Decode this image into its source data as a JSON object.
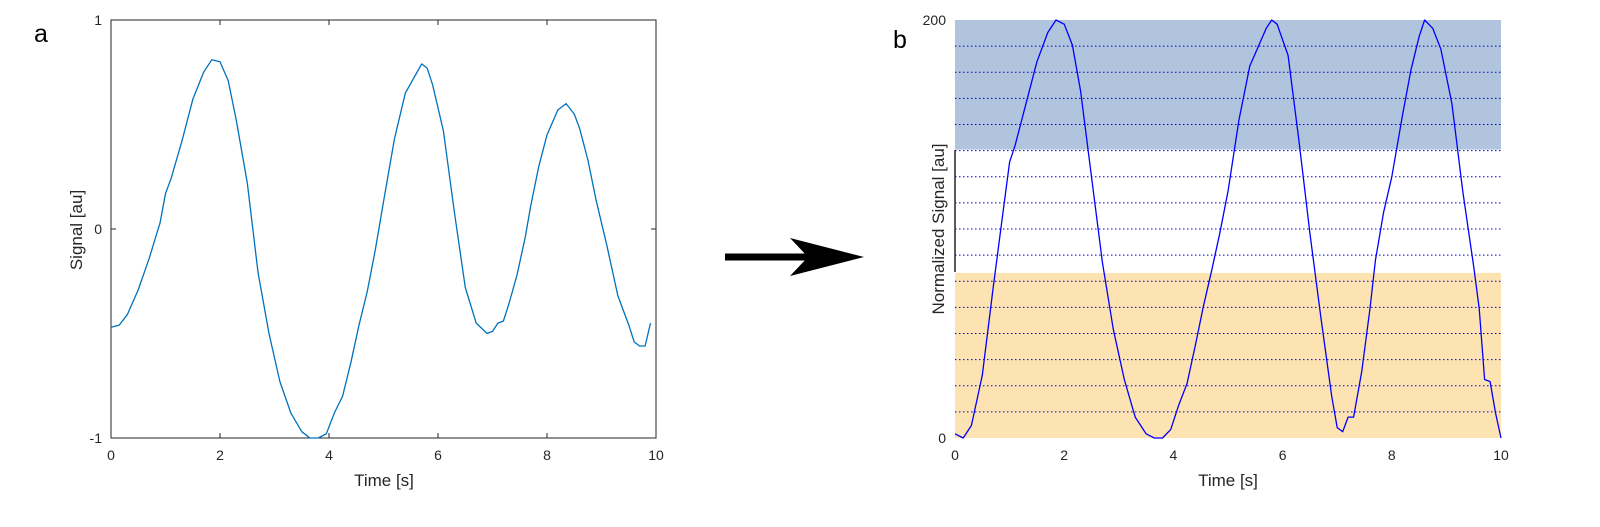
{
  "colors": {
    "series_a": "#0072bd",
    "series_b": "#0000ff",
    "band_high": "#b0c4de",
    "band_low": "#fde2b2",
    "axis": "#262626",
    "grid": "#0000cc",
    "arrow": "#000000"
  },
  "chart_data": [
    {
      "panel_label": "a",
      "type": "line",
      "title": "",
      "xlabel": "Time [s]",
      "ylabel": "Signal [au]",
      "xlim": [
        0,
        10
      ],
      "ylim": [
        -1,
        1
      ],
      "xticks": [
        "0",
        "2",
        "4",
        "6",
        "8",
        "10"
      ],
      "yticks": [
        "-1",
        "0",
        "1"
      ],
      "grid": false,
      "series": [
        {
          "x": [
            0,
            0.15,
            0.3,
            0.5,
            0.7,
            0.9,
            1.0,
            1.1,
            1.3,
            1.5,
            1.7,
            1.85,
            2.0,
            2.15,
            2.3,
            2.5,
            2.7,
            2.9,
            3.1,
            3.3,
            3.5,
            3.65,
            3.8,
            3.95,
            4.1,
            4.25,
            4.4,
            4.55,
            4.7,
            4.85,
            5.0,
            5.2,
            5.4,
            5.55,
            5.7,
            5.8,
            5.9,
            6.1,
            6.3,
            6.5,
            6.7,
            6.9,
            7.0,
            7.1,
            7.2,
            7.3,
            7.45,
            7.6,
            7.7,
            7.85,
            8.0,
            8.2,
            8.35,
            8.5,
            8.6,
            8.75,
            8.9,
            9.1,
            9.3,
            9.5,
            9.6,
            9.7,
            9.8,
            9.9
          ],
          "y": [
            -0.47,
            -0.46,
            -0.41,
            -0.29,
            -0.14,
            0.03,
            0.17,
            0.24,
            0.42,
            0.62,
            0.75,
            0.81,
            0.8,
            0.71,
            0.52,
            0.22,
            -0.21,
            -0.5,
            -0.73,
            -0.88,
            -0.97,
            -1.0,
            -1.0,
            -0.98,
            -0.88,
            -0.8,
            -0.64,
            -0.46,
            -0.3,
            -0.1,
            0.13,
            0.43,
            0.65,
            0.72,
            0.79,
            0.77,
            0.69,
            0.47,
            0.08,
            -0.28,
            -0.45,
            -0.5,
            -0.49,
            -0.45,
            -0.44,
            -0.36,
            -0.22,
            -0.04,
            0.11,
            0.3,
            0.45,
            0.57,
            0.6,
            0.55,
            0.48,
            0.33,
            0.14,
            -0.08,
            -0.32,
            -0.46,
            -0.54,
            -0.56,
            -0.56,
            -0.45
          ]
        }
      ]
    },
    {
      "panel_label": "b",
      "type": "line",
      "title": "",
      "xlabel": "Time [s]",
      "ylabel": "Normalized Signal [au]",
      "xlim": [
        0,
        10
      ],
      "ylim": [
        0,
        200
      ],
      "xticks": [
        "0",
        "2",
        "4",
        "6",
        "8",
        "10"
      ],
      "yticks": [
        "0",
        "200"
      ],
      "grid": true,
      "bands": [
        {
          "name": "high",
          "y0": 138,
          "y1": 200
        },
        {
          "name": "low",
          "y0": 0,
          "y1": 79
        }
      ],
      "gridlines_y": [
        12.5,
        25,
        37.5,
        50,
        62.5,
        75,
        87.5,
        100,
        112.5,
        125,
        137.5,
        150,
        162.5,
        175,
        187.5
      ],
      "series": [
        {
          "x": [
            0,
            0.15,
            0.3,
            0.5,
            0.7,
            0.9,
            1.0,
            1.1,
            1.3,
            1.5,
            1.7,
            1.85,
            2.0,
            2.15,
            2.3,
            2.5,
            2.7,
            2.9,
            3.1,
            3.3,
            3.5,
            3.65,
            3.8,
            3.95,
            4.1,
            4.25,
            4.4,
            4.55,
            4.7,
            4.85,
            5.0,
            5.2,
            5.4,
            5.55,
            5.7,
            5.8,
            5.9,
            6.1,
            6.3,
            6.5,
            6.7,
            6.9,
            7.0,
            7.1,
            7.2,
            7.3,
            7.45,
            7.6,
            7.7,
            7.85,
            8.0,
            8.2,
            8.35,
            8.5,
            8.6,
            8.75,
            8.9,
            9.1,
            9.3,
            9.5,
            9.6,
            9.7,
            9.8,
            9.9,
            10.0
          ],
          "y": [
            2,
            0,
            6,
            30,
            72,
            112,
            132,
            140,
            160,
            180,
            194,
            200,
            198,
            188,
            166,
            125,
            84,
            52,
            28,
            10,
            2,
            0,
            0,
            4,
            16,
            26,
            44,
            63,
            80,
            98,
            118,
            152,
            178,
            187,
            196,
            200,
            198,
            183,
            142,
            98,
            58,
            20,
            5,
            3,
            10,
            10,
            32,
            62,
            85,
            108,
            125,
            155,
            176,
            192,
            200,
            196,
            186,
            160,
            118,
            82,
            62,
            28,
            27,
            12,
            0
          ]
        }
      ]
    }
  ]
}
